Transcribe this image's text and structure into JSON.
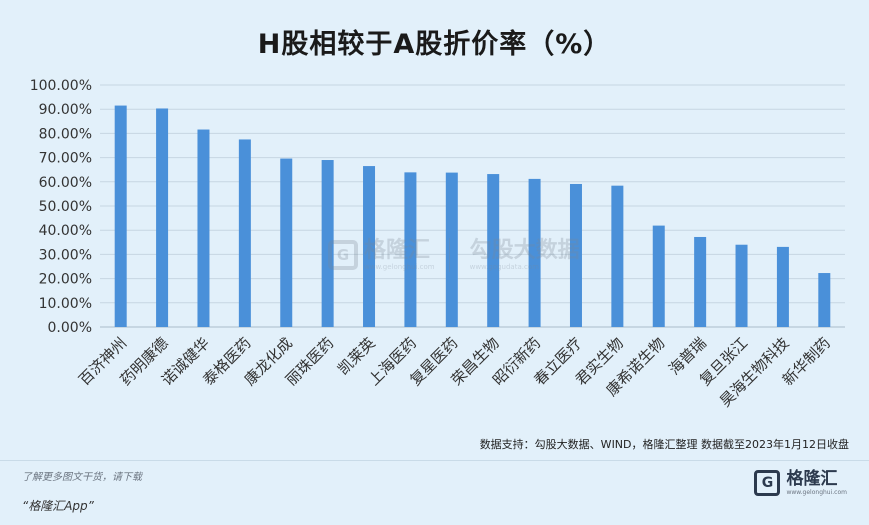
{
  "chart_data": {
    "type": "bar",
    "title": "H股相较于A股折价率（%）",
    "categories": [
      "百济神州",
      "药明康德",
      "诺诚健华",
      "泰格医药",
      "康龙化成",
      "丽珠医药",
      "凯莱英",
      "上海医药",
      "复星医药",
      "荣昌生物",
      "昭衍新药",
      "春立医疗",
      "君实生物",
      "康希诺生物",
      "海普瑞",
      "复旦张江",
      "昊海生物科技",
      "新华制药"
    ],
    "values": [
      91.5,
      90.3,
      81.6,
      77.5,
      69.6,
      69.0,
      66.5,
      63.9,
      63.8,
      63.2,
      61.2,
      59.1,
      58.4,
      41.9,
      37.2,
      34.0,
      33.1,
      22.3
    ],
    "ylim": [
      0,
      100
    ],
    "yticks": [
      "0.00%",
      "10.00%",
      "20.00%",
      "30.00%",
      "40.00%",
      "50.00%",
      "60.00%",
      "70.00%",
      "80.00%",
      "90.00%",
      "100.00%"
    ],
    "bar_color": "#4a90d9",
    "grid": true
  },
  "source_note": "数据支持：勾股大数据、WIND，格隆汇整理 数据截至2023年1月12日收盘",
  "footer": {
    "hint": "了解更多图文干货，请下载",
    "app": "“格隆汇App”",
    "logo_glyph": "G",
    "logo_cn": "格隆汇",
    "logo_url": "www.gelonghui.com"
  },
  "watermark": {
    "logo_glyph": "G",
    "brand1": "格隆汇",
    "brand1_url": "www.gelonghui.com",
    "brand2": "勾股大数据",
    "brand2_url": "www.gogudata.com"
  }
}
